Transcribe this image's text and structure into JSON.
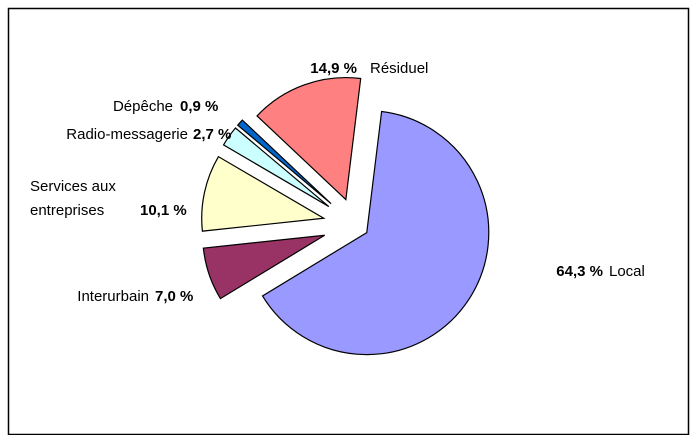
{
  "chart_data": {
    "type": "pie",
    "categories": [
      "Local",
      "Interurbain",
      "Services aux entreprises",
      "Radio-messagerie",
      "Dépêche",
      "Résiduel"
    ],
    "values": [
      64.3,
      7.0,
      10.1,
      2.7,
      0.9,
      14.9
    ],
    "value_labels": [
      "64,3 %",
      "7,0 %",
      "10,1 %",
      "2,7 %",
      "0,9 %",
      "14,9 %"
    ],
    "colors": [
      "#9999ff",
      "#993366",
      "#ffffcc",
      "#ccffff",
      "#0066cc",
      "#ff8080"
    ]
  }
}
